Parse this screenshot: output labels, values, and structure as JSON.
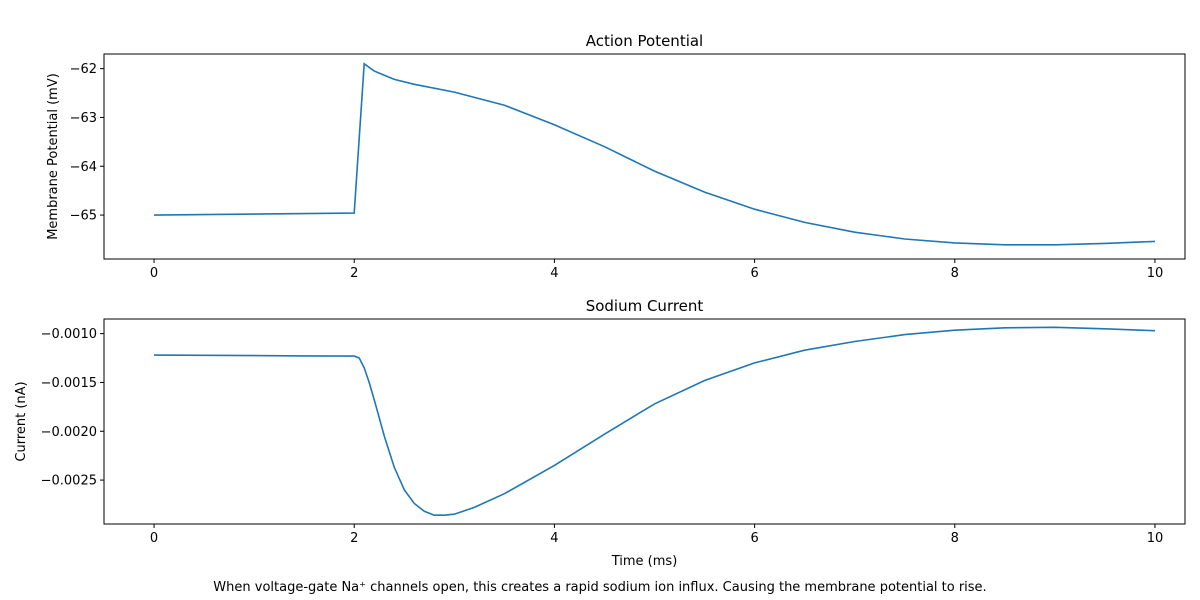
{
  "caption": "When voltage-gate Na⁺ channels open, this creates a rapid sodium ion influx. Causing the membrane potential to rise.",
  "colors": {
    "line": "#1f77b4",
    "axis": "#000000"
  },
  "chart_data": [
    {
      "type": "line",
      "title": "Action Potential",
      "xlabel": "",
      "ylabel": "Membrane Potential (mV)",
      "xlim": [
        -0.5,
        10.3
      ],
      "ylim": [
        -65.9,
        -61.7
      ],
      "xticks": [
        0,
        2,
        4,
        6,
        8,
        10
      ],
      "yticks": [
        -65,
        -64,
        -63,
        -62
      ],
      "xtick_labels": [
        "0",
        "2",
        "4",
        "6",
        "8",
        "10"
      ],
      "ytick_labels": [
        "−65",
        "−64",
        "−63",
        "−62"
      ],
      "series": [
        {
          "x": [
            0,
            0.5,
            1.0,
            1.5,
            2.0,
            2.1,
            2.2,
            2.4,
            2.6,
            3.0,
            3.5,
            4.0,
            4.5,
            5.0,
            5.5,
            6.0,
            6.5,
            7.0,
            7.5,
            8.0,
            8.5,
            9.0,
            9.5,
            10.0
          ],
          "y": [
            -65.0,
            -64.99,
            -64.98,
            -64.97,
            -64.96,
            -61.9,
            -62.05,
            -62.22,
            -62.32,
            -62.48,
            -62.75,
            -63.15,
            -63.6,
            -64.1,
            -64.53,
            -64.88,
            -65.15,
            -65.35,
            -65.49,
            -65.57,
            -65.61,
            -65.61,
            -65.58,
            -65.54
          ]
        }
      ]
    },
    {
      "type": "line",
      "title": "Sodium Current",
      "xlabel": "Time (ms)",
      "ylabel": "Current (nA)",
      "xlim": [
        -0.5,
        10.3
      ],
      "ylim": [
        -0.00295,
        -0.00085
      ],
      "xticks": [
        0,
        2,
        4,
        6,
        8,
        10
      ],
      "yticks": [
        -0.001,
        -0.0015,
        -0.002,
        -0.0025
      ],
      "xtick_labels": [
        "0",
        "2",
        "4",
        "6",
        "8",
        "10"
      ],
      "ytick_labels": [
        "−0.0010",
        "−0.0015",
        "−0.0020",
        "−0.0025"
      ],
      "series": [
        {
          "x": [
            0,
            0.5,
            1.0,
            1.5,
            2.0,
            2.05,
            2.1,
            2.15,
            2.2,
            2.3,
            2.4,
            2.5,
            2.6,
            2.7,
            2.8,
            2.9,
            3.0,
            3.2,
            3.5,
            4.0,
            4.5,
            5.0,
            5.5,
            6.0,
            6.5,
            7.0,
            7.5,
            8.0,
            8.5,
            9.0,
            9.5,
            10.0
          ],
          "y": [
            -0.00122,
            -0.001222,
            -0.001225,
            -0.001228,
            -0.00123,
            -0.00125,
            -0.00135,
            -0.0015,
            -0.00168,
            -0.00205,
            -0.00237,
            -0.0026,
            -0.00274,
            -0.00282,
            -0.00286,
            -0.00286,
            -0.00285,
            -0.00278,
            -0.00264,
            -0.00235,
            -0.00203,
            -0.00172,
            -0.00148,
            -0.0013,
            -0.00117,
            -0.00108,
            -0.00101,
            -0.000965,
            -0.00094,
            -0.000935,
            -0.00095,
            -0.00097
          ]
        }
      ]
    }
  ]
}
